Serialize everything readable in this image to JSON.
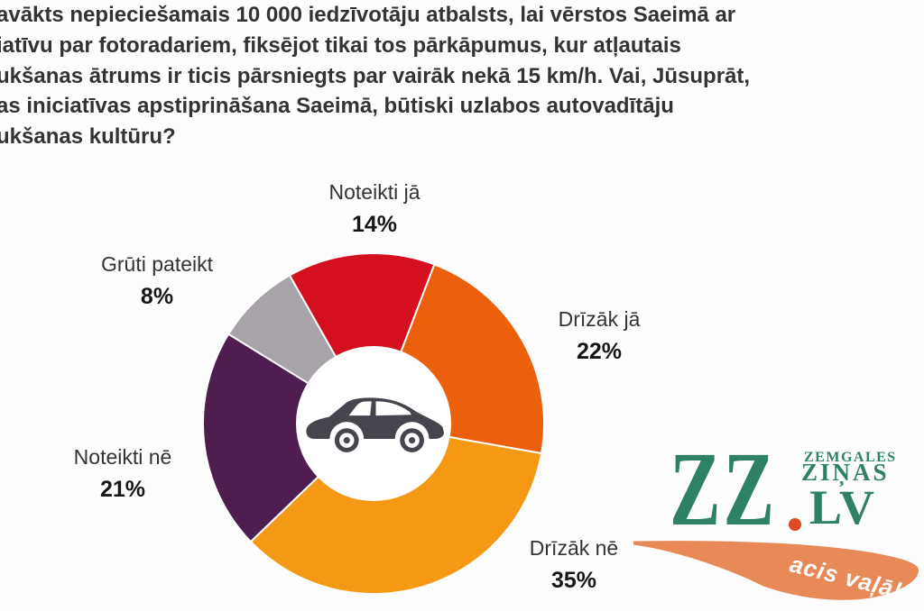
{
  "question": {
    "text": "avākts nepieciešamais 10 000 iedzīvotāju atbalsts, lai vērstos Saeimā ar\niatīvu par fotoradariem, fiksējot tikai tos pārkāpumus, kur atļautais\nukšanas ātrums ir ticis pārsniegts par vairāk nekā 15 km/h. Vai, Jūsuprāt,\nas iniciatīvas apstiprināšana Saeimā, būtiski uzlabos autovadītāju\nukšanas kultūru?"
  },
  "chart_data": {
    "type": "pie",
    "subtype": "donut",
    "title": "",
    "legend_position": "callouts-around-chart",
    "start_angle_deg": -29.5,
    "center_icon": "car-icon",
    "hole_color": "#ffffff",
    "slices": [
      {
        "label": "Noteikti jā",
        "value": 14,
        "pct": "14%",
        "color": "#d5101e"
      },
      {
        "label": "Drīzāk jā",
        "value": 22,
        "pct": "22%",
        "color": "#ec600d"
      },
      {
        "label": "Drīzāk nē",
        "value": 35,
        "pct": "35%",
        "color": "#f59814"
      },
      {
        "label": "Noteikti nē",
        "value": 21,
        "pct": "21%",
        "color": "#4f1d50"
      },
      {
        "label": "Grūti pateikt",
        "value": 8,
        "pct": "8%",
        "color": "#a8a3a8"
      }
    ]
  },
  "logo": {
    "zz": "ZZ",
    "small_top": "ZEMGALES",
    "small_mid": "ZIŅAS",
    "lv": "LV",
    "slogan": "acis vaļā!",
    "green": "#2e8165",
    "swoosh_orange": "#e78a58",
    "dot_red": "#dd4a26"
  }
}
